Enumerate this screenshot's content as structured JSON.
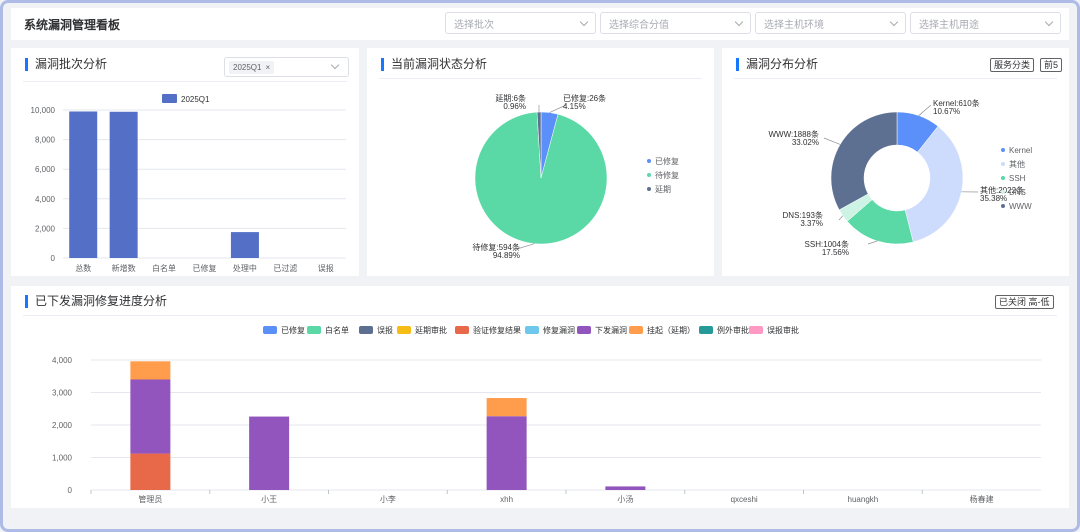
{
  "header": {
    "title": "系统漏洞管理看板",
    "filters": [
      "选择批次",
      "选择综合分值",
      "选择主机环境",
      "选择主机用途"
    ]
  },
  "colors": {
    "accent": "#1677ff",
    "bar_blue": "#5470c6",
    "fixed": "#5b8ff9",
    "pending": "#5ad8a6",
    "delay": "#5d7092"
  },
  "scan": {
    "title": "漏洞批次分析",
    "batch_chip": "2025Q1",
    "chip_close": "×",
    "chart_data": {
      "type": "bar",
      "categories": [
        "总数",
        "新增数",
        "白名单",
        "已修复",
        "处理中",
        "已过滤",
        "误报"
      ],
      "series": [
        {
          "name": "2025Q1",
          "values": [
            9900,
            9880,
            0,
            0,
            1750,
            0,
            0
          ]
        }
      ],
      "yticks": [
        "10,000",
        "8,000",
        "6,000",
        "4,000",
        "2,000",
        "0"
      ],
      "ylim": [
        0,
        10000
      ],
      "legend": "top-center"
    }
  },
  "status": {
    "title": "当前漏洞状态分析",
    "chart_data": {
      "type": "pie",
      "slices": [
        {
          "name": "已修复",
          "count_label": "已修复:26条",
          "pct_label": "4.15%",
          "value": 4.15,
          "color": "#5b8ff9"
        },
        {
          "name": "待修复",
          "count_label": "待修复:594条",
          "pct_label": "94.89%",
          "value": 94.89,
          "color": "#5ad8a6"
        },
        {
          "name": "延期",
          "count_label": "延期:6条",
          "pct_label": "0.96%",
          "value": 0.96,
          "color": "#5d7092"
        }
      ],
      "legend": "right"
    }
  },
  "dist": {
    "title": "漏洞分布分析",
    "btn_service": "服务分类",
    "btn_top": "前5",
    "chart_data": {
      "type": "pie",
      "donut": true,
      "slices": [
        {
          "name": "Kernel",
          "count_label": "Kernel:610条",
          "pct_label": "10.67%",
          "value": 10.67,
          "color": "#5b8ff9"
        },
        {
          "name": "其他",
          "count_label": "其他:2022条",
          "pct_label": "35.38%",
          "value": 35.38,
          "color": "#cddcfd"
        },
        {
          "name": "SSH",
          "count_label": "SSH:1004条",
          "pct_label": "17.56%",
          "value": 17.56,
          "color": "#5ad8a6"
        },
        {
          "name": "DNS",
          "count_label": "DNS:193条",
          "pct_label": "3.37%",
          "value": 3.37,
          "color": "#cdf3e4"
        },
        {
          "name": "WWW",
          "count_label": "WWW:1888条",
          "pct_label": "33.02%",
          "value": 33.02,
          "color": "#5d7092"
        }
      ],
      "legend": "right"
    }
  },
  "progress": {
    "title": "已下发漏洞修复进度分析",
    "btn_sort": "已关闭 高-低",
    "chart_data": {
      "type": "bar",
      "stacked": true,
      "categories": [
        "管理员",
        "小王",
        "小李",
        "xhh",
        "小汤",
        "qxceshi",
        "huangkh",
        "杨春建"
      ],
      "yticks": [
        "4,000",
        "3,000",
        "2,000",
        "1,000",
        "0"
      ],
      "ylim": [
        0,
        4000
      ],
      "legend": "top-center",
      "series": [
        {
          "name": "已修复",
          "color": "#5b8ff9",
          "values": [
            0,
            0,
            0,
            0,
            0,
            0,
            0,
            0
          ]
        },
        {
          "name": "白名单",
          "color": "#5ad8a6",
          "values": [
            0,
            0,
            0,
            0,
            0,
            0,
            0,
            0
          ]
        },
        {
          "name": "误报",
          "color": "#5d7092",
          "values": [
            0,
            0,
            0,
            0,
            0,
            0,
            0,
            0
          ]
        },
        {
          "name": "延期审批",
          "color": "#f6bd16",
          "values": [
            0,
            0,
            0,
            0,
            0,
            0,
            0,
            0
          ]
        },
        {
          "name": "验证修复结果",
          "color": "#e8684a",
          "values": [
            1120,
            0,
            0,
            0,
            0,
            0,
            0,
            0
          ]
        },
        {
          "name": "修复漏洞",
          "color": "#6dc8ec",
          "values": [
            0,
            0,
            0,
            0,
            0,
            0,
            0,
            0
          ]
        },
        {
          "name": "下发漏洞",
          "color": "#9254bd",
          "values": [
            2280,
            2260,
            0,
            2270,
            110,
            0,
            0,
            0
          ]
        },
        {
          "name": "挂起（延期）",
          "color": "#ff9d4d",
          "values": [
            560,
            0,
            0,
            560,
            0,
            0,
            0,
            0
          ]
        },
        {
          "name": "例外审批",
          "color": "#269a99",
          "values": [
            0,
            0,
            0,
            0,
            0,
            0,
            0,
            0
          ]
        },
        {
          "name": "误报审批",
          "color": "#ff99c3",
          "values": [
            0,
            0,
            0,
            0,
            0,
            0,
            0,
            0
          ]
        }
      ]
    }
  }
}
